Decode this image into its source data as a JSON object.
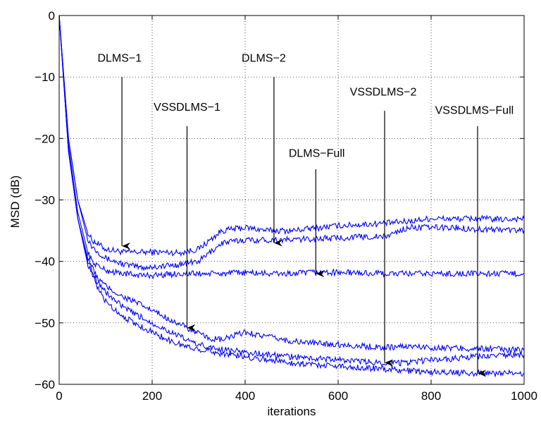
{
  "chart_data": {
    "type": "line",
    "xlabel": "iterations",
    "ylabel": "MSD (dB)",
    "xlim": [
      0,
      1000
    ],
    "ylim": [
      -60,
      0
    ],
    "xticks": [
      0,
      200,
      400,
      600,
      800,
      1000
    ],
    "yticks": [
      0,
      -10,
      -20,
      -30,
      -40,
      -50,
      -60
    ],
    "grid": true,
    "line_color": "#0000ff",
    "series": [
      {
        "x": [
          0,
          20,
          40,
          60,
          70,
          100,
          140,
          180,
          220,
          260,
          300,
          350,
          400,
          450,
          500,
          550,
          600,
          650,
          700,
          750,
          800,
          850,
          900,
          950,
          1000
        ],
        "y": [
          0,
          -20,
          -30,
          -35,
          -36.5,
          -38,
          -38.5,
          -38.5,
          -38.5,
          -38.6,
          -38,
          -35,
          -34.5,
          -35,
          -35,
          -34.6,
          -34.2,
          -34,
          -33.8,
          -33.5,
          -33,
          -33.1,
          -33,
          -33.2,
          -33
        ]
      },
      {
        "x": [
          0,
          20,
          40,
          60,
          70,
          100,
          140,
          180,
          220,
          260,
          300,
          350,
          400,
          450,
          500,
          550,
          600,
          650,
          700,
          750,
          800,
          850,
          900,
          950,
          1000
        ],
        "y": [
          0,
          -20,
          -30,
          -36,
          -37.5,
          -39.5,
          -40.5,
          -41,
          -40.8,
          -40.5,
          -40,
          -37,
          -36.5,
          -36.5,
          -36.5,
          -36.3,
          -36.2,
          -36,
          -36,
          -34.5,
          -34.5,
          -34.5,
          -34.8,
          -34.8,
          -35
        ]
      },
      {
        "x": [
          0,
          20,
          40,
          60,
          70,
          100,
          140,
          180,
          220,
          260,
          300,
          350,
          400,
          450,
          500,
          550,
          600,
          650,
          700,
          750,
          800,
          850,
          900,
          950,
          1000
        ],
        "y": [
          0,
          -21,
          -32,
          -38,
          -40,
          -41.5,
          -42,
          -42.3,
          -42.2,
          -42,
          -42,
          -42,
          -41.8,
          -42,
          -42,
          -41.8,
          -41.8,
          -41.9,
          -42,
          -42,
          -42,
          -42,
          -42,
          -42,
          -42
        ]
      },
      {
        "x": [
          0,
          20,
          40,
          60,
          80,
          100,
          130,
          160,
          200,
          240,
          280,
          320,
          350,
          400,
          450,
          500,
          550,
          600,
          650,
          700,
          750,
          800,
          850,
          900,
          950,
          1000
        ],
        "y": [
          0,
          -22,
          -33,
          -39,
          -42.5,
          -44,
          -45.5,
          -46.5,
          -48,
          -49.5,
          -51,
          -52.5,
          -52.8,
          -51.5,
          -52.3,
          -53,
          -53.3,
          -53.5,
          -53.8,
          -54,
          -53.8,
          -54,
          -54.1,
          -54.2,
          -54.3,
          -54.5
        ]
      },
      {
        "x": [
          0,
          20,
          40,
          60,
          80,
          100,
          130,
          160,
          200,
          240,
          280,
          320,
          350,
          400,
          450,
          500,
          550,
          600,
          650,
          700,
          750,
          800,
          850,
          900,
          950,
          1000
        ],
        "y": [
          0,
          -22,
          -33,
          -39.5,
          -43,
          -45,
          -47,
          -48.5,
          -50,
          -51.5,
          -53,
          -54,
          -54.3,
          -54.8,
          -55.2,
          -55.5,
          -55.8,
          -56,
          -56.3,
          -56.5,
          -56.5,
          -56,
          -55.8,
          -55.5,
          -55.3,
          -55.2
        ]
      },
      {
        "x": [
          0,
          20,
          40,
          60,
          80,
          100,
          130,
          160,
          200,
          240,
          280,
          320,
          350,
          400,
          450,
          500,
          550,
          600,
          650,
          700,
          750,
          800,
          850,
          900,
          950,
          1000
        ],
        "y": [
          0,
          -22,
          -33,
          -40,
          -44,
          -46.5,
          -48.5,
          -50,
          -51.5,
          -53,
          -54,
          -54.5,
          -55,
          -55.5,
          -56,
          -56.5,
          -56.8,
          -57,
          -57.3,
          -57.5,
          -57.8,
          -58,
          -58.1,
          -58.2,
          -58.2,
          -58.2
        ]
      }
    ],
    "annotations": [
      {
        "text": "DLMS−1",
        "text_x": 130,
        "text_y": -7.5,
        "from_y": -10,
        "to_x": 135,
        "to_y": -37.5
      },
      {
        "text": "DLMS−2",
        "text_x": 440,
        "text_y": -7.5,
        "from_y": -10,
        "to_x": 462,
        "to_y": -37
      },
      {
        "text": "VSSDLMS−1",
        "text_x": 275,
        "text_y": -15.5,
        "from_y": -18,
        "to_x": 275,
        "to_y": -50.8
      },
      {
        "text": "DLMS−Full",
        "text_x": 554,
        "text_y": -23,
        "from_y": -25,
        "to_x": 552,
        "to_y": -42
      },
      {
        "text": "VSSDLMS−2",
        "text_x": 697,
        "text_y": -13,
        "from_y": -15.5,
        "to_x": 700,
        "to_y": -56.5
      },
      {
        "text": "VSSDLMS−Full",
        "text_x": 893,
        "text_y": -16,
        "from_y": -18,
        "to_x": 900,
        "to_y": -58.2
      }
    ]
  }
}
